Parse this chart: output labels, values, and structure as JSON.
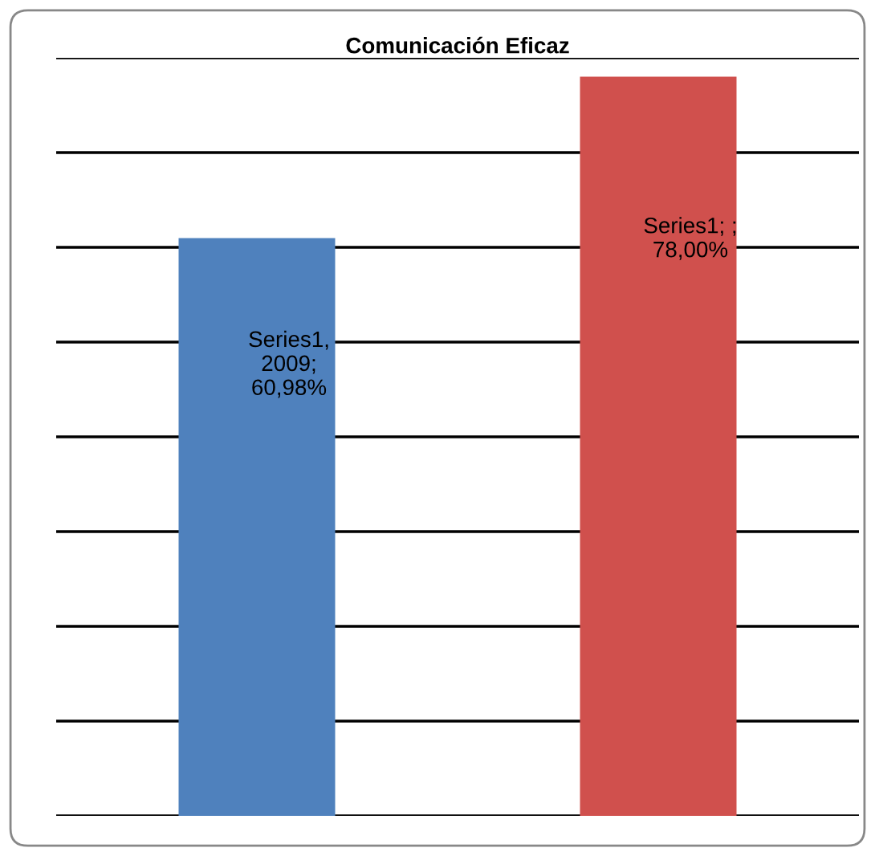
{
  "chart_data": {
    "type": "bar",
    "title": "Comunicación Eficaz",
    "categories": [
      null,
      null
    ],
    "values": [
      60.98,
      78.0
    ],
    "colors": [
      "#4f81bd",
      "#d0504d"
    ],
    "value_labels": [
      "Series1,\n2009;\n60,98%",
      "Series1; ;\n78,00%"
    ],
    "ylim": [
      0,
      80
    ],
    "yticks": [
      {
        "value": 0,
        "label": null
      },
      {
        "value": 10,
        "label": null
      },
      {
        "value": 20,
        "label": null
      },
      {
        "value": 30,
        "label": null
      },
      {
        "value": 40,
        "label": null
      },
      {
        "value": 50,
        "label": null
      },
      {
        "value": 60,
        "label": null
      },
      {
        "value": 70,
        "label": null
      },
      {
        "value": 80,
        "label": null
      }
    ],
    "grid": "y",
    "legend": false
  }
}
